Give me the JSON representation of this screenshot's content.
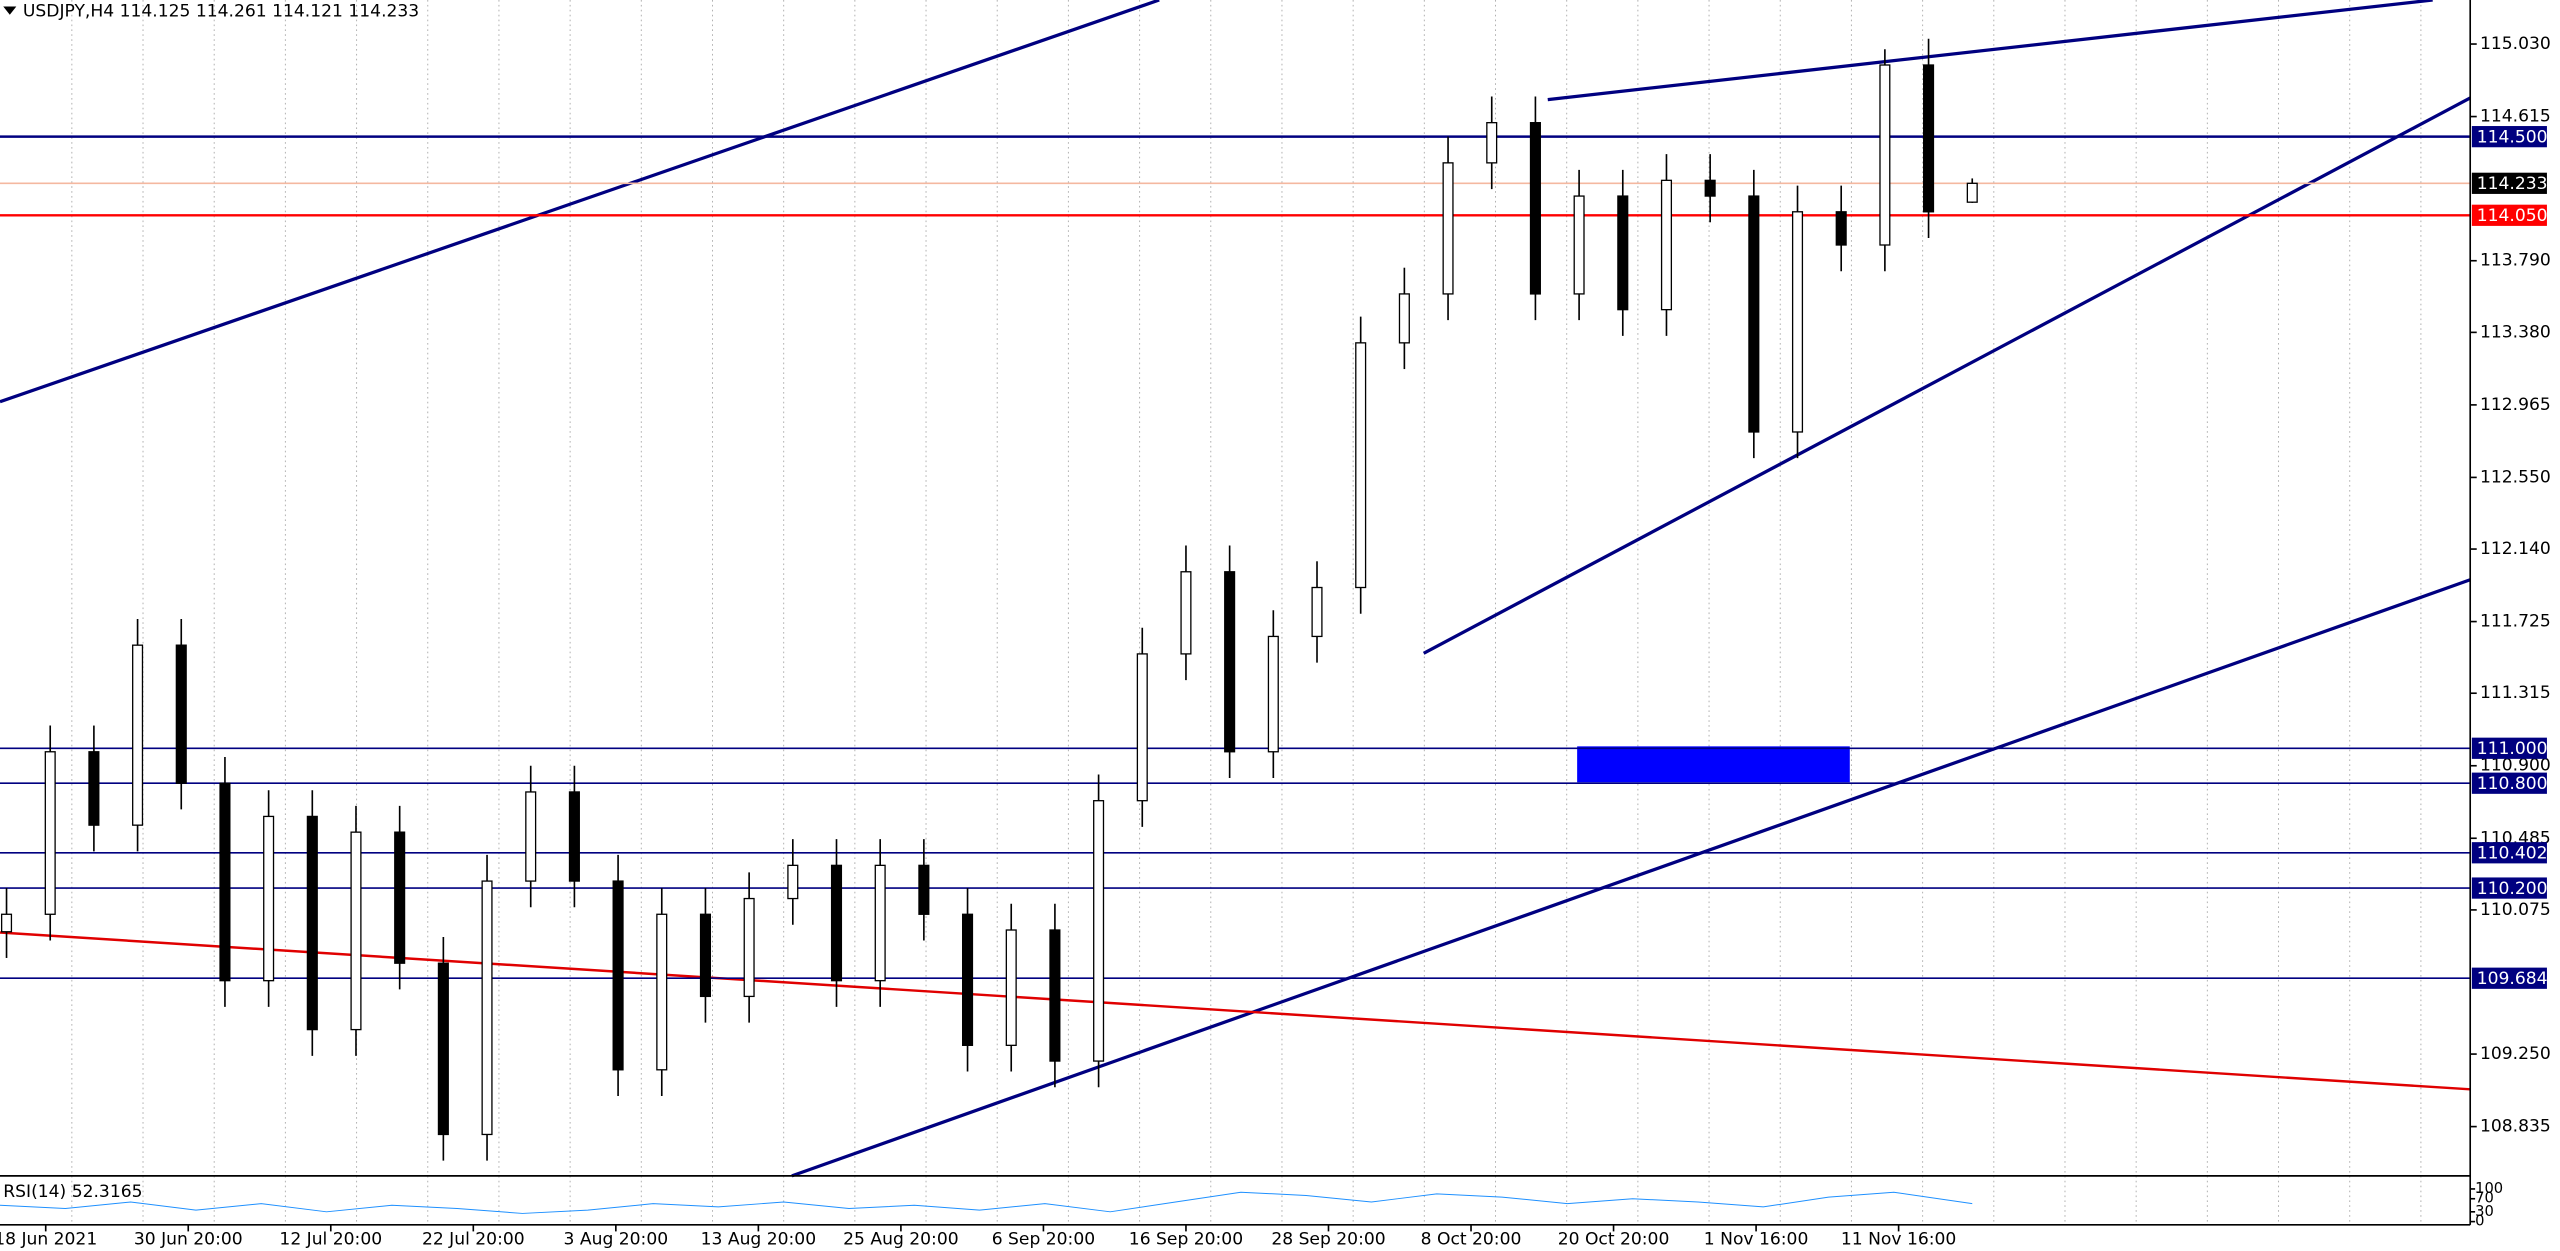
{
  "header": {
    "symbol": "USDJPY,H4",
    "open": 114.125,
    "high": 114.261,
    "low": 114.121,
    "close": 114.233
  },
  "chart_data": {
    "type": "candlestick",
    "open": [
      109.95,
      110.05,
      110.98,
      110.56,
      111.59,
      110.8,
      109.67,
      110.61,
      109.39,
      110.52,
      109.77,
      108.79,
      110.24,
      110.75,
      110.24,
      109.16,
      110.05,
      109.58,
      110.14,
      110.33,
      109.67,
      110.33,
      110.05,
      109.3,
      109.96,
      109.21,
      110.7,
      111.54,
      112.01,
      110.98,
      111.64,
      111.92,
      113.32,
      113.6,
      114.35,
      114.58,
      113.6,
      114.16,
      113.51,
      114.25,
      114.16,
      112.81,
      114.07,
      113.88,
      114.91,
      114.125
    ],
    "high": [
      110.2,
      111.13,
      111.13,
      111.74,
      111.74,
      110.95,
      110.76,
      110.76,
      110.67,
      110.67,
      109.92,
      110.39,
      110.9,
      110.9,
      110.39,
      110.2,
      110.2,
      110.29,
      110.48,
      110.48,
      110.48,
      110.48,
      110.2,
      110.11,
      110.11,
      110.85,
      111.69,
      112.16,
      112.16,
      111.79,
      112.07,
      113.47,
      113.75,
      114.5,
      114.73,
      114.73,
      114.31,
      114.31,
      114.4,
      114.4,
      114.31,
      114.22,
      114.22,
      115.0,
      115.06,
      114.261
    ],
    "low": [
      109.8,
      109.9,
      110.41,
      110.41,
      110.65,
      109.52,
      109.52,
      109.24,
      109.24,
      109.62,
      108.64,
      108.64,
      110.09,
      110.09,
      109.01,
      109.01,
      109.43,
      109.43,
      109.99,
      109.52,
      109.52,
      109.9,
      109.15,
      109.15,
      109.06,
      109.06,
      110.55,
      111.39,
      110.83,
      110.83,
      111.49,
      111.77,
      113.17,
      113.45,
      114.2,
      113.45,
      113.45,
      113.36,
      113.36,
      114.01,
      112.66,
      112.66,
      113.73,
      113.73,
      113.92,
      114.121
    ],
    "close": [
      110.05,
      110.98,
      110.56,
      111.59,
      110.8,
      109.67,
      110.61,
      109.39,
      110.52,
      109.77,
      108.79,
      110.24,
      110.75,
      110.24,
      109.16,
      110.05,
      109.58,
      110.14,
      110.33,
      109.67,
      110.33,
      110.05,
      109.3,
      109.96,
      109.21,
      110.7,
      111.54,
      112.01,
      110.98,
      111.64,
      111.92,
      113.32,
      113.6,
      114.35,
      114.58,
      113.6,
      114.16,
      113.51,
      114.25,
      114.16,
      112.81,
      114.07,
      113.88,
      114.91,
      114.07,
      114.233
    ],
    "up_color": "#ffffff",
    "down_color": "#000000",
    "ylim": [
      108.553,
      115.282
    ],
    "yticks": [
      {
        "value": 115.03,
        "label": "115.030"
      },
      {
        "value": 114.615,
        "label": "114.615"
      },
      {
        "value": 113.79,
        "label": "113.790"
      },
      {
        "value": 113.38,
        "label": "113.380"
      },
      {
        "value": 112.965,
        "label": "112.965"
      },
      {
        "value": 112.55,
        "label": "112.550"
      },
      {
        "value": 112.14,
        "label": "112.140"
      },
      {
        "value": 111.725,
        "label": "111.725"
      },
      {
        "value": 111.315,
        "label": "111.315"
      },
      {
        "value": 110.9,
        "label": "110.900"
      },
      {
        "value": 110.485,
        "label": "110.485"
      },
      {
        "value": 110.075,
        "label": "110.075"
      },
      {
        "value": 109.25,
        "label": "109.250"
      },
      {
        "value": 108.835,
        "label": "108.835"
      }
    ],
    "price_lines": [
      {
        "value": 114.5,
        "label": "114.500",
        "color": "#000080"
      },
      {
        "value": 114.233,
        "label": "114.233",
        "color": "#000000"
      },
      {
        "value": 114.05,
        "label": "114.050",
        "color": "#ff0000"
      },
      {
        "value": 111.0,
        "label": "111.000",
        "color": "#000080"
      },
      {
        "value": 110.8,
        "label": "110.800",
        "color": "#000080"
      },
      {
        "value": 110.402,
        "label": "110.402",
        "color": "#000080"
      },
      {
        "value": 110.2,
        "label": "110.200",
        "color": "#000080"
      },
      {
        "value": 109.684,
        "label": "109.684",
        "color": "#000080"
      }
    ],
    "x_labels": [
      "18 Jun 2021",
      "30 Jun 20:00",
      "12 Jul 20:00",
      "22 Jul 20:00",
      "3 Aug 20:00",
      "13 Aug 20:00",
      "25 Aug 20:00",
      "6 Sep 20:00",
      "16 Sep 20:00",
      "28 Sep 20:00",
      "8 Oct 20:00",
      "20 Oct 20:00",
      "1 Nov 16:00",
      "11 Nov 16:00"
    ]
  },
  "indicator": {
    "label": "RSI(14)",
    "value": 52.3165,
    "levels": [
      100,
      70,
      30,
      0
    ]
  }
}
